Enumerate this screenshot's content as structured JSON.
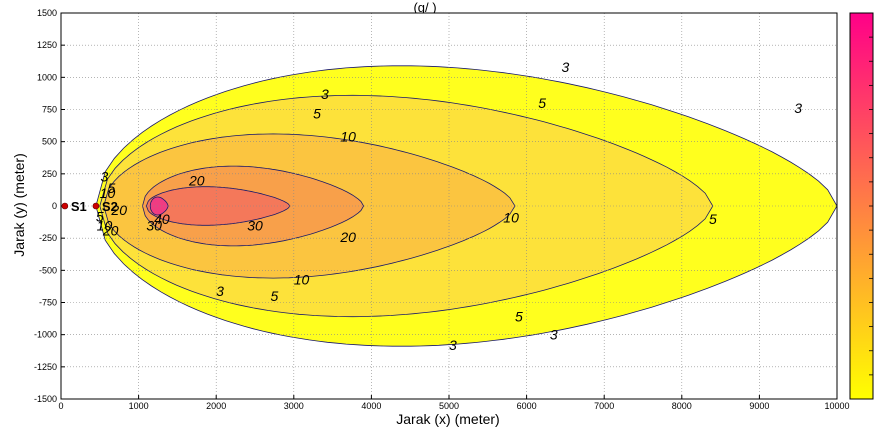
{
  "chart_data": {
    "type": "contour",
    "title": "(g/ )",
    "xlabel": "Jarak (x) (meter)",
    "ylabel": "Jarak (y) (meter)",
    "xlim": [
      0,
      10000
    ],
    "ylim": [
      -1500,
      1500
    ],
    "x_ticks": [
      "0",
      "1000",
      "2000",
      "3000",
      "4000",
      "5000",
      "6000",
      "7000",
      "8000",
      "9000",
      "10000"
    ],
    "y_ticks": [
      "1500",
      "1250",
      "1000",
      "750",
      "500",
      "250",
      "0",
      "-250",
      "-500",
      "-750",
      "-1000",
      "-1250",
      "-1500"
    ],
    "grid": true,
    "colorbar": true,
    "colormap": [
      "#ffff00",
      "#ff0088"
    ],
    "contour_levels": [
      3,
      5,
      10,
      20,
      30,
      40
    ],
    "regions": [
      {
        "level": 3,
        "color": "#ffff1e",
        "x_start": 450,
        "x_end": 10000,
        "half_width_max": 1090
      },
      {
        "level": 5,
        "color": "#fde23a",
        "x_start": 500,
        "x_end": 8400,
        "half_width_max": 860
      },
      {
        "level": 10,
        "color": "#fbc540",
        "x_start": 550,
        "x_end": 5850,
        "half_width_max": 560
      },
      {
        "level": 20,
        "color": "#f8a04a",
        "x_start": 1050,
        "x_end": 3900,
        "half_width_max": 310
      },
      {
        "level": 30,
        "color": "#f4785a",
        "x_start": 1100,
        "x_end": 2950,
        "half_width_max": 150
      },
      {
        "level": 40,
        "color": "#f03c82",
        "x_start": 1150,
        "x_end": 1380,
        "half_width_max": 70
      }
    ],
    "contour_labels": [
      {
        "text": "3",
        "x": 6500,
        "y": 1080
      },
      {
        "text": "3",
        "x": 3400,
        "y": 870
      },
      {
        "text": "3",
        "x": 9500,
        "y": 760
      },
      {
        "text": "3",
        "x": 2050,
        "y": -660
      },
      {
        "text": "3",
        "x": 6350,
        "y": -1000
      },
      {
        "text": "3",
        "x": 5050,
        "y": -1080
      },
      {
        "text": "5",
        "x": 6200,
        "y": 800
      },
      {
        "text": "5",
        "x": 3300,
        "y": 720
      },
      {
        "text": "5",
        "x": 8400,
        "y": -100
      },
      {
        "text": "5",
        "x": 2750,
        "y": -700
      },
      {
        "text": "5",
        "x": 5900,
        "y": -860
      },
      {
        "text": "10",
        "x": 3700,
        "y": 540
      },
      {
        "text": "10",
        "x": 5800,
        "y": -90
      },
      {
        "text": "10",
        "x": 3100,
        "y": -570
      },
      {
        "text": "20",
        "x": 1750,
        "y": 200
      },
      {
        "text": "20",
        "x": 3700,
        "y": -240
      },
      {
        "text": "20",
        "x": 640,
        "y": -190
      },
      {
        "text": "30",
        "x": 2500,
        "y": -150
      },
      {
        "text": "30",
        "x": 1200,
        "y": -150
      },
      {
        "text": "40",
        "x": 1300,
        "y": -100
      },
      {
        "text": "3",
        "x": 560,
        "y": 230
      },
      {
        "text": "5",
        "x": 650,
        "y": 140
      },
      {
        "text": "10",
        "x": 600,
        "y": 100
      },
      {
        "text": "20",
        "x": 750,
        "y": -30
      },
      {
        "text": "5",
        "x": 500,
        "y": -80
      },
      {
        "text": "10",
        "x": 560,
        "y": -150
      }
    ],
    "sources": [
      {
        "label": "S1",
        "x": 50,
        "y": 0
      },
      {
        "label": "S2",
        "x": 450,
        "y": 0
      }
    ]
  }
}
